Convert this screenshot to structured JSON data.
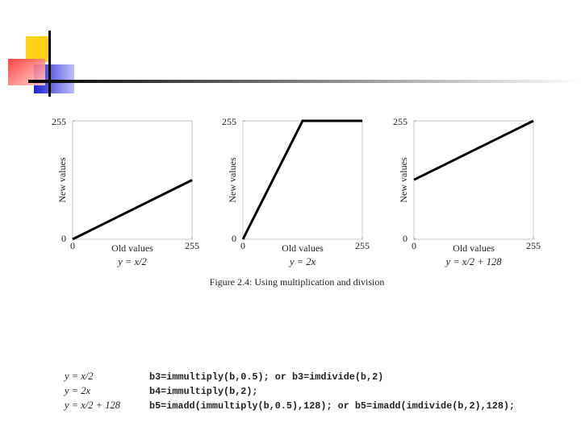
{
  "chart_data": [
    {
      "type": "line",
      "xlabel": "Old values",
      "ylabel": "New values",
      "subtitle": "y = x/2",
      "x": [
        0,
        255
      ],
      "values": [
        0,
        127.5
      ],
      "color": "#000000",
      "xlim": [
        0,
        255
      ],
      "ylim": [
        0,
        255
      ],
      "xticks": [
        0,
        255
      ],
      "yticks": [
        0,
        255
      ]
    },
    {
      "type": "line",
      "xlabel": "Old values",
      "ylabel": "New values",
      "subtitle": "y = 2x",
      "x": [
        0,
        127.5,
        255
      ],
      "values": [
        0,
        255,
        255
      ],
      "color": "#000000",
      "xlim": [
        0,
        255
      ],
      "ylim": [
        0,
        255
      ],
      "xticks": [
        0,
        255
      ],
      "yticks": [
        0,
        255
      ]
    },
    {
      "type": "line",
      "xlabel": "Old values",
      "ylabel": "New values",
      "subtitle": "y = x/2 + 128",
      "x": [
        0,
        255
      ],
      "values": [
        128,
        255
      ],
      "color": "#000000",
      "xlim": [
        0,
        255
      ],
      "ylim": [
        0,
        255
      ],
      "xticks": [
        0,
        255
      ],
      "yticks": [
        0,
        255
      ]
    }
  ],
  "caption": "Figure 2.4: Using multiplication and division",
  "code": [
    {
      "formula": "y = x/2",
      "command": "b3=immultiply(b,0.5); or b3=imdivide(b,2)"
    },
    {
      "formula": "y = 2x",
      "command": "b4=immultiply(b,2);"
    },
    {
      "formula": "y = x/2 + 128",
      "command": "b5=imadd(immultiply(b,0.5),128); or b5=imadd(imdivide(b,2),128);"
    }
  ]
}
